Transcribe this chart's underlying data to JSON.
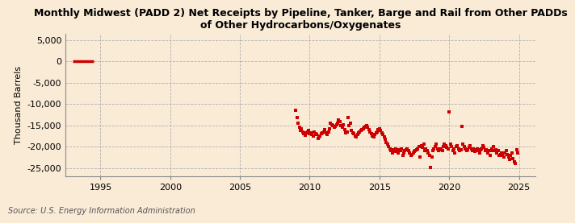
{
  "title": "Monthly Midwest (PADD 2) Net Receipts by Pipeline, Tanker, Barge and Rail from Other PADDs\nof Other Hydrocarbons/Oxygenates",
  "ylabel": "Thousand Barrels",
  "source": "Source: U.S. Energy Information Administration",
  "background_color": "#faebd7",
  "dot_color": "#cc0000",
  "line_color": "#cc0000",
  "ylim": [
    -27000,
    6500
  ],
  "yticks": [
    5000,
    0,
    -5000,
    -10000,
    -15000,
    -20000,
    -25000
  ],
  "xlim_start": 1992.5,
  "xlim_end": 2026.2,
  "xticks": [
    1995,
    2000,
    2005,
    2010,
    2015,
    2020,
    2025
  ],
  "early_line": {
    "x0": 1993.0,
    "x1": 1994.5,
    "y": 0
  },
  "data_points": [
    [
      2009.0,
      -11500
    ],
    [
      2009.083,
      -13200
    ],
    [
      2009.167,
      -14500
    ],
    [
      2009.25,
      -15500
    ],
    [
      2009.333,
      -16200
    ],
    [
      2009.417,
      -15800
    ],
    [
      2009.5,
      -16500
    ],
    [
      2009.583,
      -17000
    ],
    [
      2009.667,
      -17300
    ],
    [
      2009.75,
      -16800
    ],
    [
      2009.833,
      -16500
    ],
    [
      2009.917,
      -16200
    ],
    [
      2010.0,
      -17000
    ],
    [
      2010.083,
      -16800
    ],
    [
      2010.167,
      -17200
    ],
    [
      2010.25,
      -17500
    ],
    [
      2010.333,
      -16500
    ],
    [
      2010.417,
      -17000
    ],
    [
      2010.5,
      -17200
    ],
    [
      2010.583,
      -18000
    ],
    [
      2010.667,
      -17800
    ],
    [
      2010.75,
      -17500
    ],
    [
      2010.833,
      -17000
    ],
    [
      2010.917,
      -16800
    ],
    [
      2011.0,
      -16500
    ],
    [
      2011.083,
      -16000
    ],
    [
      2011.167,
      -16800
    ],
    [
      2011.25,
      -17200
    ],
    [
      2011.333,
      -16500
    ],
    [
      2011.417,
      -15800
    ],
    [
      2011.5,
      -14500
    ],
    [
      2011.583,
      -14800
    ],
    [
      2011.667,
      -15000
    ],
    [
      2011.75,
      -15500
    ],
    [
      2011.833,
      -15200
    ],
    [
      2011.917,
      -14800
    ],
    [
      2012.0,
      -14500
    ],
    [
      2012.083,
      -13800
    ],
    [
      2012.167,
      -14200
    ],
    [
      2012.25,
      -15000
    ],
    [
      2012.333,
      -15500
    ],
    [
      2012.417,
      -14800
    ],
    [
      2012.5,
      -16000
    ],
    [
      2012.583,
      -16800
    ],
    [
      2012.667,
      -16500
    ],
    [
      2012.75,
      -13200
    ],
    [
      2012.833,
      -15000
    ],
    [
      2012.917,
      -14500
    ],
    [
      2013.0,
      -16200
    ],
    [
      2013.083,
      -16800
    ],
    [
      2013.167,
      -17000
    ],
    [
      2013.25,
      -17500
    ],
    [
      2013.333,
      -17800
    ],
    [
      2013.417,
      -17200
    ],
    [
      2013.5,
      -16800
    ],
    [
      2013.583,
      -16500
    ],
    [
      2013.667,
      -16200
    ],
    [
      2013.75,
      -16000
    ],
    [
      2013.833,
      -15800
    ],
    [
      2013.917,
      -15500
    ],
    [
      2014.0,
      -15200
    ],
    [
      2014.083,
      -15000
    ],
    [
      2014.167,
      -15500
    ],
    [
      2014.25,
      -16000
    ],
    [
      2014.333,
      -16500
    ],
    [
      2014.417,
      -17000
    ],
    [
      2014.5,
      -17500
    ],
    [
      2014.583,
      -17800
    ],
    [
      2014.667,
      -17200
    ],
    [
      2014.75,
      -16800
    ],
    [
      2014.833,
      -16500
    ],
    [
      2014.917,
      -16000
    ],
    [
      2015.0,
      -15800
    ],
    [
      2015.083,
      -16200
    ],
    [
      2015.167,
      -16800
    ],
    [
      2015.25,
      -17200
    ],
    [
      2015.333,
      -17800
    ],
    [
      2015.417,
      -18200
    ],
    [
      2015.5,
      -19000
    ],
    [
      2015.583,
      -19500
    ],
    [
      2015.667,
      -20000
    ],
    [
      2015.75,
      -20500
    ],
    [
      2015.833,
      -21000
    ],
    [
      2015.917,
      -21500
    ],
    [
      2016.0,
      -20800
    ],
    [
      2016.083,
      -21200
    ],
    [
      2016.167,
      -20500
    ],
    [
      2016.25,
      -21000
    ],
    [
      2016.333,
      -21500
    ],
    [
      2016.417,
      -20800
    ],
    [
      2016.5,
      -21000
    ],
    [
      2016.583,
      -20500
    ],
    [
      2016.667,
      -22000
    ],
    [
      2016.75,
      -21500
    ],
    [
      2016.833,
      -21000
    ],
    [
      2016.917,
      -20800
    ],
    [
      2017.0,
      -20500
    ],
    [
      2017.083,
      -21000
    ],
    [
      2017.167,
      -21500
    ],
    [
      2017.25,
      -22000
    ],
    [
      2017.333,
      -21800
    ],
    [
      2017.417,
      -21500
    ],
    [
      2017.5,
      -21200
    ],
    [
      2017.583,
      -21000
    ],
    [
      2017.667,
      -20800
    ],
    [
      2017.75,
      -20500
    ],
    [
      2017.833,
      -20000
    ],
    [
      2017.917,
      -22500
    ],
    [
      2018.0,
      -19800
    ],
    [
      2018.083,
      -20200
    ],
    [
      2018.167,
      -19500
    ],
    [
      2018.25,
      -21000
    ],
    [
      2018.333,
      -20500
    ],
    [
      2018.417,
      -21000
    ],
    [
      2018.5,
      -21500
    ],
    [
      2018.583,
      -22000
    ],
    [
      2018.667,
      -24800
    ],
    [
      2018.75,
      -22500
    ],
    [
      2018.833,
      -21000
    ],
    [
      2018.917,
      -20500
    ],
    [
      2019.0,
      -20000
    ],
    [
      2019.083,
      -19500
    ],
    [
      2019.167,
      -20500
    ],
    [
      2019.25,
      -21000
    ],
    [
      2019.333,
      -20800
    ],
    [
      2019.417,
      -20500
    ],
    [
      2019.5,
      -21000
    ],
    [
      2019.583,
      -20000
    ],
    [
      2019.667,
      -19500
    ],
    [
      2019.75,
      -19800
    ],
    [
      2019.833,
      -20200
    ],
    [
      2019.917,
      -20500
    ],
    [
      2020.0,
      -11800
    ],
    [
      2020.083,
      -19500
    ],
    [
      2020.167,
      -20000
    ],
    [
      2020.25,
      -21000
    ],
    [
      2020.333,
      -20500
    ],
    [
      2020.417,
      -21500
    ],
    [
      2020.5,
      -20000
    ],
    [
      2020.583,
      -19800
    ],
    [
      2020.667,
      -20500
    ],
    [
      2020.75,
      -21000
    ],
    [
      2020.833,
      -20800
    ],
    [
      2020.917,
      -15200
    ],
    [
      2021.0,
      -19500
    ],
    [
      2021.083,
      -20000
    ],
    [
      2021.167,
      -20500
    ],
    [
      2021.25,
      -21000
    ],
    [
      2021.333,
      -20800
    ],
    [
      2021.417,
      -20200
    ],
    [
      2021.5,
      -19800
    ],
    [
      2021.583,
      -20500
    ],
    [
      2021.667,
      -21000
    ],
    [
      2021.75,
      -20500
    ],
    [
      2021.833,
      -21200
    ],
    [
      2021.917,
      -20800
    ],
    [
      2022.0,
      -20500
    ],
    [
      2022.083,
      -21000
    ],
    [
      2022.167,
      -21500
    ],
    [
      2022.25,
      -20800
    ],
    [
      2022.333,
      -20500
    ],
    [
      2022.417,
      -19800
    ],
    [
      2022.5,
      -20200
    ],
    [
      2022.583,
      -21000
    ],
    [
      2022.667,
      -20800
    ],
    [
      2022.75,
      -21500
    ],
    [
      2022.833,
      -21000
    ],
    [
      2022.917,
      -22000
    ],
    [
      2023.0,
      -21000
    ],
    [
      2023.083,
      -20500
    ],
    [
      2023.167,
      -20000
    ],
    [
      2023.25,
      -21000
    ],
    [
      2023.333,
      -20800
    ],
    [
      2023.417,
      -21500
    ],
    [
      2023.5,
      -21000
    ],
    [
      2023.583,
      -22000
    ],
    [
      2023.667,
      -21800
    ],
    [
      2023.75,
      -21500
    ],
    [
      2023.833,
      -22000
    ],
    [
      2023.917,
      -22500
    ],
    [
      2024.0,
      -21500
    ],
    [
      2024.083,
      -21000
    ],
    [
      2024.167,
      -21800
    ],
    [
      2024.25,
      -22500
    ],
    [
      2024.333,
      -23000
    ],
    [
      2024.417,
      -22000
    ],
    [
      2024.5,
      -21500
    ],
    [
      2024.583,
      -22800
    ],
    [
      2024.667,
      -23500
    ],
    [
      2024.75,
      -24000
    ],
    [
      2024.833,
      -20800
    ],
    [
      2024.917,
      -21500
    ]
  ]
}
